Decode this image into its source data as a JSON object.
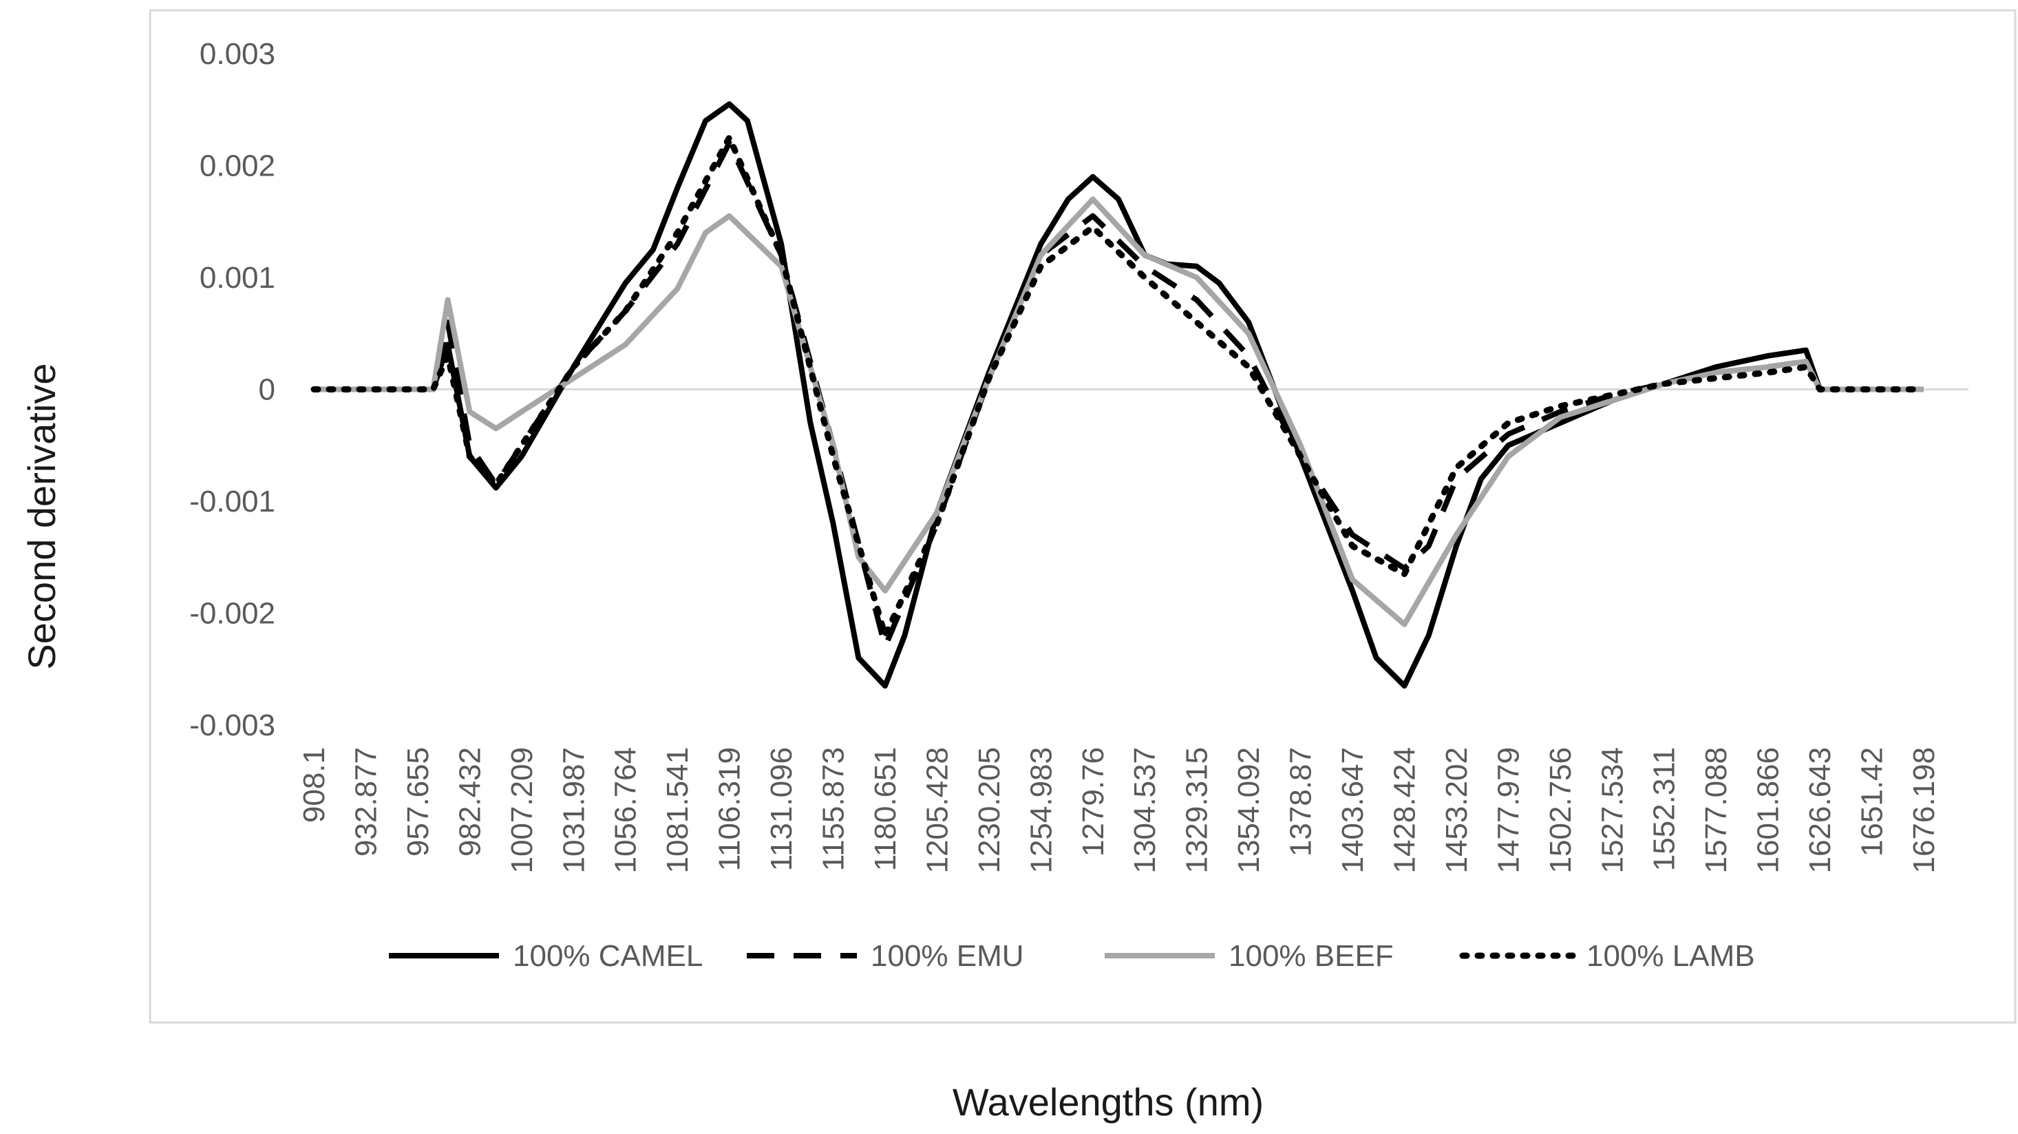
{
  "chart_data": {
    "type": "line",
    "title": "",
    "xlabel": "Wavelengths (nm)",
    "ylabel": "Second derivative",
    "ylim": [
      -0.003,
      0.003
    ],
    "yticks": [
      0.003,
      0.002,
      0.001,
      0,
      -0.001,
      -0.002,
      -0.003
    ],
    "ytick_labels": [
      "0.003",
      "0.002",
      "0.001",
      "0",
      "-0.001",
      "-0.002",
      "-0.003"
    ],
    "xlim": [
      908.1,
      1676.198
    ],
    "xtick_labels": [
      "908.1",
      "932.877",
      "957.655",
      "982.432",
      "1007.209",
      "1031.987",
      "1056.764",
      "1081.541",
      "1106.319",
      "1131.096",
      "1155.873",
      "1180.651",
      "1205.428",
      "1230.205",
      "1254.983",
      "1279.76",
      "1304.537",
      "1329.315",
      "1354.092",
      "1378.87",
      "1403.647",
      "1428.424",
      "1453.202",
      "1477.979",
      "1502.756",
      "1527.534",
      "1552.311",
      "1577.088",
      "1601.866",
      "1626.643",
      "1651.42",
      "1676.198"
    ],
    "grid": false,
    "zero_line": true,
    "legend_position": "bottom",
    "series": [
      {
        "name": "100% CAMEL",
        "color": "#000000",
        "style": "solid",
        "x": [
          908.1,
          932.877,
          957.655,
          965,
          972,
          982.432,
          995,
          1007.209,
          1031.987,
          1056.764,
          1070,
          1081.541,
          1095,
          1106.319,
          1115,
          1131.096,
          1145,
          1155.873,
          1168,
          1180.651,
          1190,
          1205.428,
          1230.205,
          1254.983,
          1268,
          1279.76,
          1292,
          1304.537,
          1315,
          1329.315,
          1340,
          1354.092,
          1378.87,
          1403.647,
          1415,
          1428.424,
          1440,
          1453.202,
          1465,
          1477.979,
          1502.756,
          1527.534,
          1552.311,
          1577.088,
          1601.866,
          1620,
          1626.643,
          1651.42,
          1676.198
        ],
        "values": [
          0,
          0,
          0,
          0,
          0.0004,
          -0.0006,
          -0.00088,
          -0.0006,
          0.0002,
          0.00095,
          0.00125,
          0.0018,
          0.0024,
          0.00255,
          0.0024,
          0.0013,
          -0.0003,
          -0.0012,
          -0.0024,
          -0.00265,
          -0.0022,
          -0.0011,
          0.00015,
          0.0013,
          0.0017,
          0.0019,
          0.0017,
          0.0012,
          0.00112,
          0.0011,
          0.00095,
          0.0006,
          -0.0006,
          -0.0018,
          -0.0024,
          -0.00265,
          -0.0022,
          -0.0014,
          -0.0008,
          -0.0005,
          -0.0003,
          -0.0001,
          5e-05,
          0.0002,
          0.0003,
          0.00035,
          0,
          0,
          0
        ]
      },
      {
        "name": "100% EMU",
        "color": "#000000",
        "style": "dashed",
        "x": [
          908.1,
          932.877,
          957.655,
          965,
          972,
          982.432,
          995,
          1007.209,
          1031.987,
          1056.764,
          1081.541,
          1106.319,
          1131.096,
          1155.873,
          1180.651,
          1205.428,
          1230.205,
          1254.983,
          1279.76,
          1304.537,
          1329.315,
          1354.092,
          1378.87,
          1403.647,
          1428.424,
          1440,
          1453.202,
          1477.979,
          1502.756,
          1527.534,
          1552.311,
          1577.088,
          1601.866,
          1620,
          1626.643,
          1651.42,
          1676.198
        ],
        "values": [
          0,
          0,
          0,
          0,
          0.0006,
          -0.0005,
          -0.00085,
          -0.0005,
          0.0002,
          0.0007,
          0.0013,
          0.0022,
          0.0012,
          -0.0005,
          -0.0023,
          -0.0012,
          0.0001,
          0.0012,
          0.00155,
          0.0011,
          0.0008,
          0.0003,
          -0.0006,
          -0.0013,
          -0.0016,
          -0.0014,
          -0.0008,
          -0.0004,
          -0.0002,
          -5e-05,
          5e-05,
          0.00015,
          0.0002,
          0.00025,
          0,
          0,
          0
        ]
      },
      {
        "name": "100% BEEF",
        "color": "#a6a6a6",
        "style": "solid",
        "x": [
          908.1,
          932.877,
          957.655,
          965,
          972,
          982.432,
          995,
          1007.209,
          1031.987,
          1056.764,
          1081.541,
          1095,
          1106.319,
          1131.096,
          1155.873,
          1168,
          1180.651,
          1205.428,
          1230.205,
          1254.983,
          1279.76,
          1304.537,
          1329.315,
          1354.092,
          1378.87,
          1403.647,
          1428.424,
          1453.202,
          1477.979,
          1502.756,
          1527.534,
          1552.311,
          1577.088,
          1601.866,
          1620,
          1626.643,
          1651.42,
          1676.198
        ],
        "values": [
          0,
          0,
          0,
          0,
          0.0008,
          -0.0002,
          -0.00035,
          -0.0002,
          0.0001,
          0.0004,
          0.0009,
          0.0014,
          0.00155,
          0.0011,
          -0.0005,
          -0.0015,
          -0.0018,
          -0.0011,
          0.0001,
          0.0012,
          0.0017,
          0.0012,
          0.001,
          0.0005,
          -0.0005,
          -0.0017,
          -0.0021,
          -0.0013,
          -0.0006,
          -0.00025,
          -0.0001,
          5e-05,
          0.00015,
          0.0002,
          0.00025,
          0,
          0,
          0
        ]
      },
      {
        "name": "100% LAMB",
        "color": "#000000",
        "style": "dotted",
        "x": [
          908.1,
          932.877,
          957.655,
          965,
          972,
          982.432,
          995,
          1007.209,
          1031.987,
          1056.764,
          1081.541,
          1106.319,
          1131.096,
          1155.873,
          1180.651,
          1205.428,
          1230.205,
          1254.983,
          1279.76,
          1304.537,
          1329.315,
          1354.092,
          1378.87,
          1403.647,
          1428.424,
          1453.202,
          1477.979,
          1502.756,
          1527.534,
          1552.311,
          1577.088,
          1601.866,
          1620,
          1626.643,
          1651.42,
          1676.198
        ],
        "values": [
          0,
          0,
          0,
          0,
          0.0003,
          -0.0006,
          -0.00085,
          -0.0005,
          0.0002,
          0.0007,
          0.0014,
          0.00225,
          0.0012,
          -0.0006,
          -0.0022,
          -0.0012,
          0.0001,
          0.0011,
          0.00145,
          0.001,
          0.0006,
          0.0002,
          -0.0006,
          -0.0014,
          -0.00165,
          -0.0007,
          -0.0003,
          -0.00015,
          -5e-05,
          5e-05,
          0.0001,
          0.00015,
          0.0002,
          0,
          0,
          0
        ]
      }
    ]
  }
}
